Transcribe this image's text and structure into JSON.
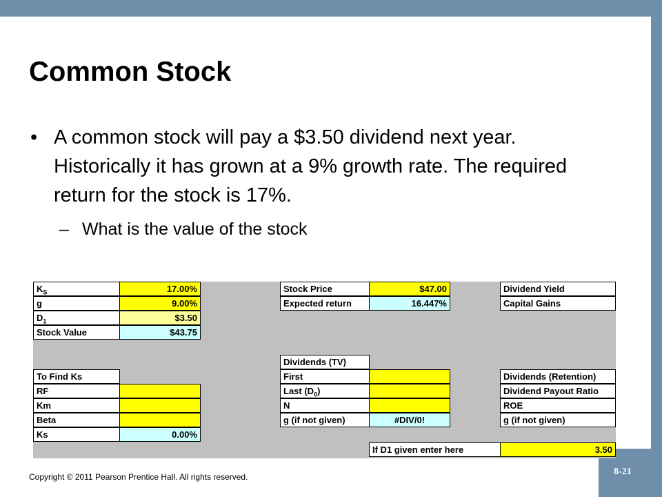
{
  "slide": {
    "title": "Common Stock",
    "bullet_char": "•",
    "bullet": "A common stock will pay a $3.50 dividend next year. Historically it has grown at a 9% growth rate. The required return for the stock is 17%.",
    "sub_char": "–",
    "sub_bullet": "What is the value of the stock",
    "copyright": "Copyright © 2011 Pearson Prentice Hall. All rights reserved.",
    "page_number": "8-21"
  },
  "sheet": {
    "ks_label_main": "K",
    "ks_label_sub": "S",
    "ks_value": "17.00%",
    "g_label": "g",
    "g_value": "9.00%",
    "d1_label_main": "D",
    "d1_label_sub": "1",
    "d1_value": "$3.50",
    "stock_value_label": "Stock Value",
    "stock_value": "$43.75",
    "stock_price_label": "Stock Price",
    "stock_price_value": "$47.00",
    "expected_return_label": "Expected return",
    "expected_return_value": "16.447%",
    "dividend_yield_label": "Dividend Yield",
    "capital_gains_label": "Capital Gains",
    "dividends_tv_label": "Dividends (TV)",
    "first_label": "First",
    "last_label_main": "Last (D",
    "last_label_sub": "0",
    "last_label_end": ")",
    "n_label": "N",
    "g_if_label": "g (if not given)",
    "g_if_value": "#DIV/0!",
    "to_find_ks_label": "To Find Ks",
    "rf_label": "RF",
    "km_label": "Km",
    "beta_label": "Beta",
    "ks_result_label": "Ks",
    "ks_result_value": "0.00%",
    "div_retention_label": "Dividends (Retention)",
    "payout_label": "Dividend Payout Ratio",
    "roe_label": "ROE",
    "g_if_label_2": "g (if not given)",
    "d1_given_label": "If D1 given enter here",
    "d1_given_value": "3.50"
  }
}
